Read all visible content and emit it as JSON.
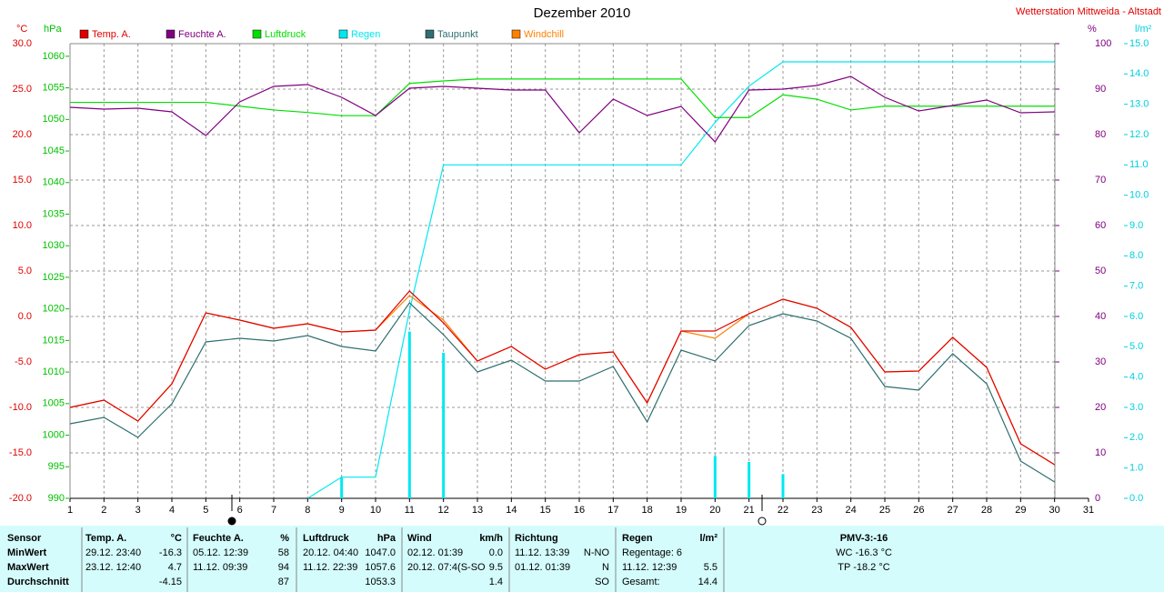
{
  "chart_data": {
    "type": "line",
    "title": "Dezember 2010",
    "subtitle": "Wetterstation Mittweida - Altstadt",
    "y_unit": "°C",
    "y2_unit": "hPa",
    "y3_unit": "%",
    "y4_unit": "l/m²",
    "x": [
      1,
      2,
      3,
      4,
      5,
      6,
      7,
      8,
      9,
      10,
      11,
      12,
      13,
      14,
      15,
      16,
      17,
      18,
      19,
      20,
      21,
      22,
      23,
      24,
      25,
      26,
      27,
      28,
      29,
      30
    ],
    "xlim": [
      1,
      31
    ],
    "xticks": [
      1,
      2,
      3,
      4,
      5,
      6,
      7,
      8,
      9,
      10,
      11,
      12,
      13,
      14,
      15,
      16,
      17,
      18,
      19,
      20,
      21,
      22,
      23,
      24,
      25,
      26,
      27,
      28,
      29,
      30,
      31
    ],
    "ylim": [
      -20,
      30
    ],
    "yticks": [
      {
        "value": 30,
        "label": "30.0"
      },
      {
        "value": 25,
        "label": "25.0"
      },
      {
        "value": 20,
        "label": "20.0"
      },
      {
        "value": 15,
        "label": "15.0"
      },
      {
        "value": 10,
        "label": "10.0"
      },
      {
        "value": 5,
        "label": "5.0"
      },
      {
        "value": 0,
        "label": "0.0"
      },
      {
        "value": -5,
        "label": "-5.0"
      },
      {
        "value": -10,
        "label": "-10.0"
      },
      {
        "value": -15,
        "label": "-15.0"
      },
      {
        "value": -20,
        "label": "-20.0"
      }
    ],
    "y2lim": [
      990,
      1062
    ],
    "y2ticks": [
      990,
      995,
      1000,
      1005,
      1010,
      1015,
      1020,
      1025,
      1030,
      1035,
      1040,
      1045,
      1050,
      1055,
      1060
    ],
    "y3lim": [
      0,
      100
    ],
    "y3ticks": [
      0,
      10,
      20,
      30,
      40,
      50,
      60,
      70,
      80,
      90,
      100
    ],
    "y4lim": [
      0,
      15
    ],
    "y4ticks": [
      {
        "value": 0,
        "label": "0.0"
      },
      {
        "value": 1,
        "label": "1.0"
      },
      {
        "value": 2,
        "label": "2.0"
      },
      {
        "value": 3,
        "label": "3.0"
      },
      {
        "value": 4,
        "label": "4.0"
      },
      {
        "value": 5,
        "label": "5.0"
      },
      {
        "value": 6,
        "label": "6.0"
      },
      {
        "value": 7,
        "label": "7.0"
      },
      {
        "value": 8,
        "label": "8.0"
      },
      {
        "value": 9,
        "label": "9.0"
      },
      {
        "value": 10,
        "label": "10.0"
      },
      {
        "value": 11,
        "label": "11.0"
      },
      {
        "value": 12,
        "label": "12.0"
      },
      {
        "value": 13,
        "label": "13.0"
      },
      {
        "value": 14,
        "label": "14.0"
      },
      {
        "value": 15,
        "label": "15.0"
      }
    ],
    "grid": true,
    "series": [
      {
        "name": "Temp. A.",
        "color": "#e00000",
        "axis": "y",
        "values": [
          -10,
          -9.2,
          -11.5,
          -7.4,
          0.4,
          -0.4,
          -1.3,
          -0.8,
          -1.7,
          -1.5,
          2.8,
          -0.7,
          -4.9,
          -3.3,
          -5.8,
          -4.2,
          -3.9,
          -9.5,
          -1.6,
          -1.6,
          0.3,
          1.9,
          0.9,
          -1.2,
          -6.1,
          -6.0,
          -2.3,
          -5.6,
          -14.0,
          -16.3
        ]
      },
      {
        "name": "Feuchte A.",
        "color": "#800080",
        "axis": "y3",
        "values": [
          86,
          85.6,
          85.8,
          85,
          79.8,
          87.2,
          90.6,
          91,
          88.2,
          84.2,
          90.2,
          90.6,
          90.2,
          89.8,
          89.8,
          80.4,
          87.8,
          84.2,
          86.2,
          78.4,
          89.8,
          90,
          90.8,
          92.8,
          88.2,
          85.2,
          86.4,
          87.6,
          84.8,
          85
        ]
      },
      {
        "name": "Luftdruck",
        "color": "#00e000",
        "axis": "y2",
        "values": [
          1052.7,
          1052.7,
          1052.7,
          1052.7,
          1052.7,
          1052.1,
          1051.5,
          1051.1,
          1050.6,
          1050.6,
          1055.7,
          1056.1,
          1056.4,
          1056.4,
          1056.4,
          1056.4,
          1056.4,
          1056.4,
          1056.4,
          1050.3,
          1050.3,
          1053.9,
          1053.2,
          1051.5,
          1052.1,
          1052.1,
          1052.1,
          1052.1,
          1052.1,
          1052.1
        ]
      },
      {
        "name": "Regen",
        "color": "#00e8f0",
        "axis": "y4",
        "values": [
          null,
          null,
          null,
          null,
          null,
          null,
          null,
          0,
          0.7,
          0.7,
          6.2,
          11.0,
          11.0,
          11.0,
          11.0,
          11.0,
          11.0,
          11.0,
          11.0,
          12.4,
          13.6,
          14.4,
          14.4,
          14.4,
          14.4,
          14.4,
          14.4,
          14.4,
          14.4,
          14.4
        ]
      },
      {
        "name": "Taupunkt",
        "color": "#2f6f6f",
        "axis": "y",
        "values": [
          -11.8,
          -11.1,
          -13.3,
          -9.6,
          -2.8,
          -2.4,
          -2.7,
          -2.1,
          -3.3,
          -3.8,
          1.5,
          -2.0,
          -6.1,
          -4.8,
          -7.1,
          -7.1,
          -5.5,
          -11.6,
          -3.7,
          -4.9,
          -1.0,
          0.3,
          -0.5,
          -2.4,
          -7.7,
          -8.1,
          -4.1,
          -7.4,
          -15.9,
          -18.2
        ]
      },
      {
        "name": "Windchill",
        "color": "#ff8000",
        "axis": "y",
        "values": [
          -10,
          -9.2,
          -11.5,
          -7.4,
          0.4,
          -0.4,
          -1.3,
          -0.8,
          -1.7,
          -1.5,
          2.3,
          -0.4,
          -4.9,
          -3.3,
          -5.8,
          -4.2,
          -3.9,
          -9.5,
          -1.6,
          -2.4,
          0.3,
          1.9,
          0.9,
          -1.2,
          -6.1,
          -6.0,
          -2.3,
          -5.6,
          -14.0,
          -16.3
        ]
      }
    ],
    "rain_bars": {
      "color": "#00e8f0",
      "axis": "y4",
      "values": [
        0,
        0,
        0,
        0,
        0,
        0,
        0,
        0,
        0.7,
        0,
        5.5,
        4.8,
        0,
        0,
        0,
        0,
        0,
        0,
        0,
        1.4,
        1.2,
        0.8,
        0,
        0,
        0,
        0,
        0,
        0,
        0,
        0
      ]
    }
  },
  "table": {
    "header": [
      "Sensor",
      "Temp. A.",
      "°C",
      "Feuchte A.",
      "%",
      "Luftdruck",
      "hPa",
      "Wind",
      "km/h",
      "Richtung",
      null,
      "Regen",
      "l/m²",
      "PMV-3:-16"
    ],
    "rows": [
      [
        "MinWert",
        "29.12. 23:40",
        "-16.3",
        "05.12. 12:39",
        "58",
        "20.12. 04:40",
        "1047.0",
        "02.12. 01:39",
        "0.0",
        "11.12. 13:39",
        "N-NO",
        "Regentage: 6",
        null,
        "WC -16.3 °C"
      ],
      [
        "MaxWert",
        "23.12. 12:40",
        "4.7",
        "11.12. 09:39",
        "94",
        "11.12. 22:39",
        "1057.6",
        "20.12. 07:4(S-SO",
        "9.5",
        "01.12. 01:39",
        "N",
        "11.12. 12:39",
        "5.5",
        "TP -18.2 °C"
      ],
      [
        "Durchschnitt",
        null,
        "-4.15",
        null,
        "87",
        null,
        "1053.3",
        null,
        "1.4",
        null,
        "SO",
        "Gesamt:",
        "14.4",
        null
      ]
    ]
  }
}
